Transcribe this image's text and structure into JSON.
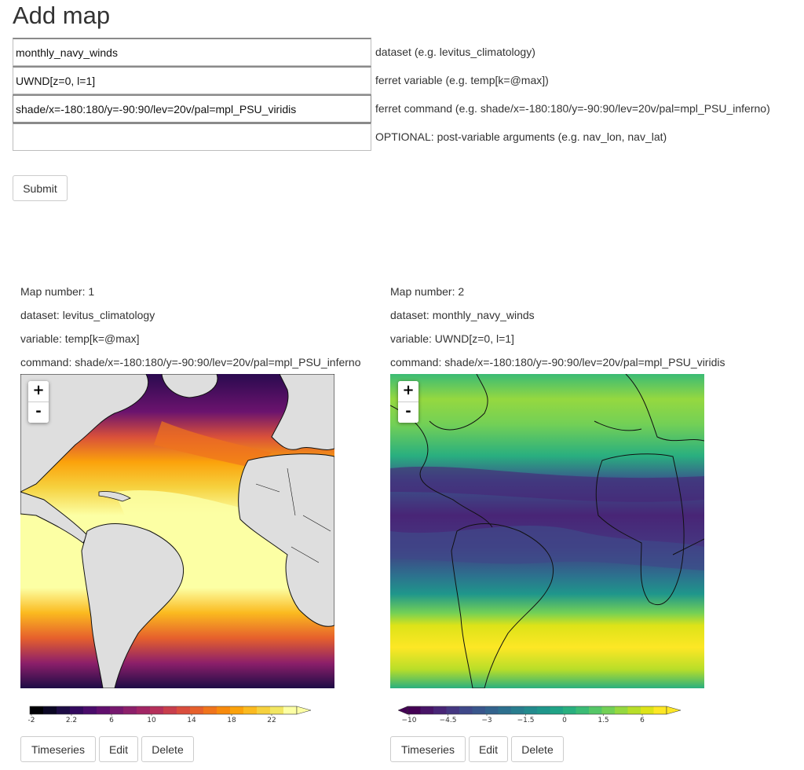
{
  "heading": "Add map",
  "form": {
    "fields": [
      {
        "value": "monthly_navy_winds",
        "hint": "dataset (e.g. levitus_climatology)"
      },
      {
        "value": "UWND[z=0, l=1]",
        "hint": "ferret variable (e.g. temp[k=@max])"
      },
      {
        "value": "shade/x=-180:180/y=-90:90/lev=20v/pal=mpl_PSU_viridis",
        "hint": "ferret command (e.g. shade/x=-180:180/y=-90:90/lev=20v/pal=mpl_PSU_inferno)"
      },
      {
        "value": "",
        "hint": "OPTIONAL: post-variable arguments (e.g. nav_lon, nav_lat)"
      }
    ],
    "submit_label": "Submit"
  },
  "maps": [
    {
      "number_text": "Map number: 1",
      "dataset_text": "dataset: levitus_climatology",
      "variable_text": "variable: temp[k=@max]",
      "command_text": "command: shade/x=-180:180/y=-90:90/lev=20v/pal=mpl_PSU_inferno",
      "zoom_in": "+",
      "zoom_out": "-",
      "colorbar_ticks": [
        "-2",
        "2.2",
        "6",
        "10",
        "14",
        "18",
        "22"
      ],
      "colorbar_palette": [
        "#000004",
        "#0b0724",
        "#1d0c45",
        "#330a5e",
        "#4a0c6b",
        "#610f6e",
        "#76186e",
        "#8c1f6a",
        "#a12564",
        "#b5305a",
        "#c83e4c",
        "#d94d3d",
        "#e6602c",
        "#f0741c",
        "#f78a0d",
        "#fba20b",
        "#fbba1f",
        "#f6d13e",
        "#f2e662",
        "#fcffa4"
      ],
      "buttons": {
        "timeseries": "Timeseries",
        "edit": "Edit",
        "delete": "Delete"
      }
    },
    {
      "number_text": "Map number: 2",
      "dataset_text": "dataset: monthly_navy_winds",
      "variable_text": "variable: UWND[z=0, l=1]",
      "command_text": "command: shade/x=-180:180/y=-90:90/lev=20v/pal=mpl_PSU_viridis",
      "zoom_in": "+",
      "zoom_out": "-",
      "colorbar_ticks": [
        "−10",
        "−4.5",
        "−3",
        "−1.5",
        "0",
        "1.5",
        "6"
      ],
      "colorbar_palette": [
        "#440154",
        "#481467",
        "#482576",
        "#453781",
        "#3f4889",
        "#39568c",
        "#33638d",
        "#2d708e",
        "#287d8e",
        "#238a8d",
        "#1f968b",
        "#20a386",
        "#29af7f",
        "#3bbb75",
        "#55c667",
        "#73d056",
        "#95d840",
        "#b8de29",
        "#dde318",
        "#fde725"
      ],
      "buttons": {
        "timeseries": "Timeseries",
        "edit": "Edit",
        "delete": "Delete"
      }
    }
  ],
  "colors": {
    "land": "#dedede",
    "coast": "#111111"
  }
}
